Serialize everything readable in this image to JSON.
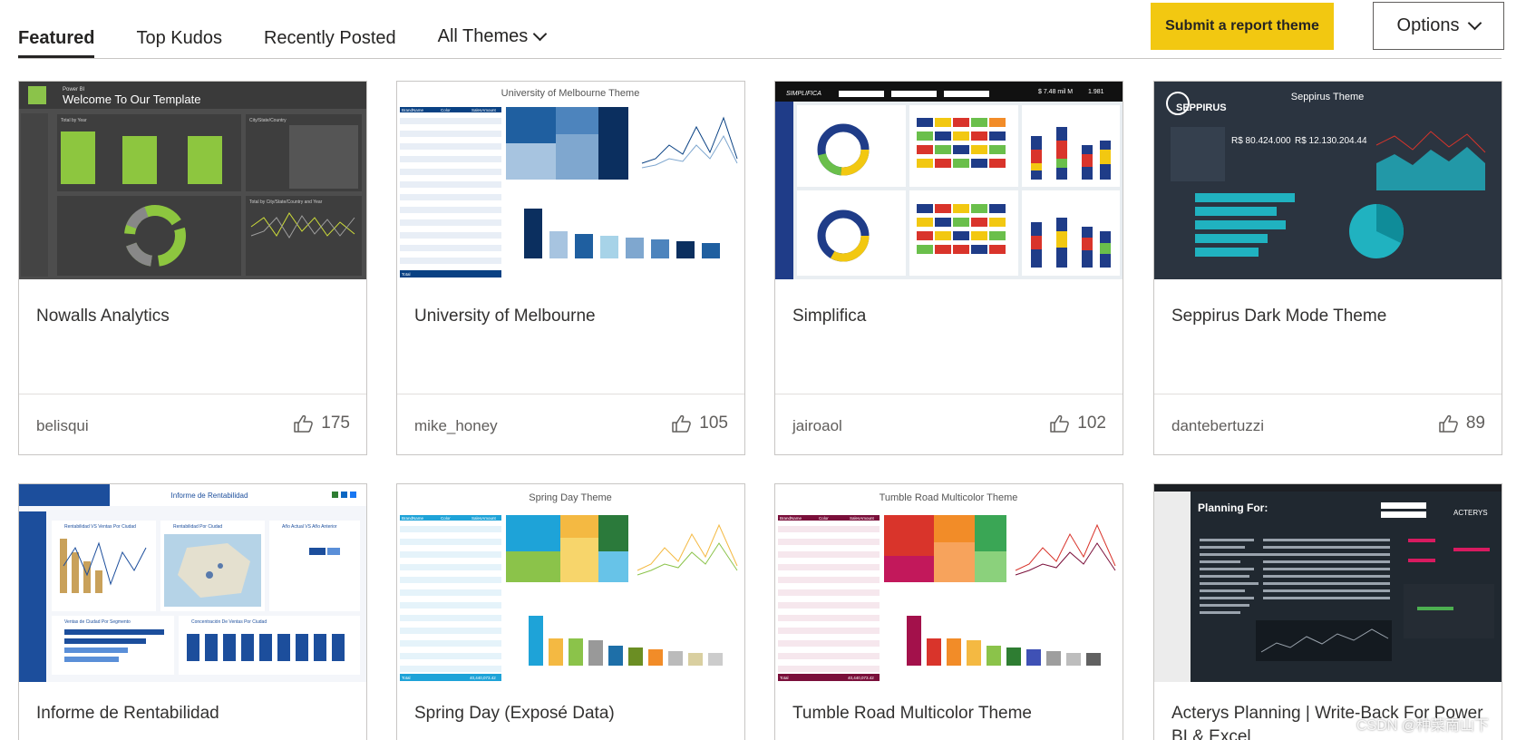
{
  "tabs": [
    {
      "label": "Featured"
    },
    {
      "label": "Top Kudos"
    },
    {
      "label": "Recently Posted"
    },
    {
      "label": "All Themes"
    }
  ],
  "actions": {
    "submit_label": "Submit a report theme",
    "options_label": "Options"
  },
  "colors": {
    "accent_yellow": "#f2c811",
    "text": "#252423",
    "muted": "#605e5c",
    "border": "#c8c6c4"
  },
  "cards": [
    {
      "title": "Nowalls Analytics",
      "author": "belisqui",
      "kudos": "175",
      "thumb": {
        "header_left": "Power BI",
        "header_title": "Welcome To Our Template",
        "panel_a": "Total by Year",
        "panel_b": "City/State/Country",
        "panel_c": "Total by City/State/Country",
        "panel_d": "Total by City/State/Country and Year"
      }
    },
    {
      "title": "University of Melbourne",
      "author": "mike_honey",
      "kudos": "105",
      "thumb": {
        "title": "University of Melbourne Theme",
        "col1": "BrandName",
        "col2": "Color",
        "col3": "SalesAmount",
        "total": "Total"
      }
    },
    {
      "title": "Simplifica",
      "author": "jairoaol",
      "kudos": "102",
      "thumb": {
        "logo": "SIMPLIFICA",
        "kpi1": "$ 7.48 mil M",
        "kpi2": "1.981"
      }
    },
    {
      "title": "Seppirus Dark Mode Theme",
      "author": "dantebertuzzi",
      "kudos": "89",
      "thumb": {
        "logo": "SEPPIRUS",
        "title": "Seppirus Theme",
        "kpi1": "R$ 80.424.000",
        "kpi2": "R$ 12.130.204.44"
      }
    },
    {
      "title": "Informe de Rentabilidad",
      "author": "",
      "kudos": "",
      "thumb": {
        "title": "Informe de Rentabilidad",
        "panel_a": "Rentabilidad VS Ventas Por Ciudad",
        "panel_b": "Rentabilidad Por Ciudad",
        "panel_c": "Año Actual VS Año Anterior",
        "panel_d": "Ventas de Ciudad Por Segmento",
        "panel_e": "Concentración De Ventas Por Ciudad"
      }
    },
    {
      "title": "Spring Day (Exposé Data)",
      "author": "",
      "kudos": "",
      "thumb": {
        "title": "Spring Day Theme",
        "col1": "BrandName",
        "col2": "Color",
        "col3": "SalesAmount",
        "total": "Total",
        "total_value": "40,440,073.42"
      }
    },
    {
      "title": "Tumble Road Multicolor Theme",
      "author": "",
      "kudos": "",
      "thumb": {
        "title": "Tumble Road Multicolor Theme",
        "col1": "BrandName",
        "col2": "Color",
        "col3": "SalesAmount",
        "total": "Total",
        "total_value": "40,440,073.42"
      }
    },
    {
      "title": "Acterys Planning | Write-Back For Power BI & Excel",
      "author": "",
      "kudos": "",
      "thumb": {
        "title": "Planning For:",
        "logo": "ACTERYS"
      }
    }
  ],
  "watermark": "CSDN @种菜南山下"
}
